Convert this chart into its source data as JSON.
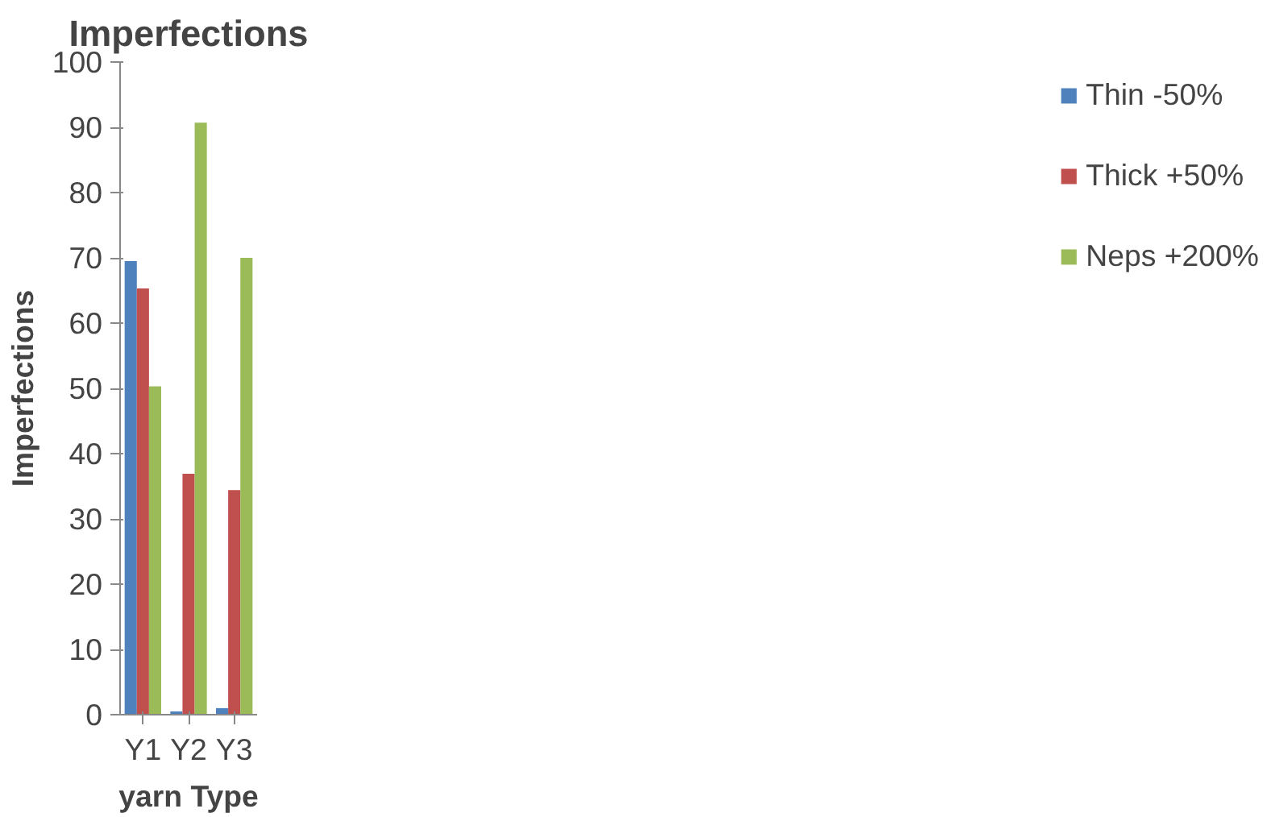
{
  "chart_data": {
    "type": "bar",
    "title": "Imperfections",
    "xlabel": "yarn Type",
    "ylabel": "Imperfections",
    "categories": [
      "Y1",
      "Y2",
      "Y3"
    ],
    "series": [
      {
        "name": "Thin -50%",
        "color": "#4f81bd",
        "values": [
          69.5,
          0.5,
          1
        ]
      },
      {
        "name": "Thick +50%",
        "color": "#c0504d",
        "values": [
          65.3,
          36.9,
          34.4
        ]
      },
      {
        "name": "Neps +200%",
        "color": "#9bbb59",
        "values": [
          50.3,
          90.7,
          70
        ]
      }
    ],
    "ylim": [
      0,
      100
    ],
    "yticks": [
      0,
      10,
      20,
      30,
      40,
      50,
      60,
      70,
      80,
      90,
      100
    ],
    "grid": false,
    "legend": "right"
  }
}
